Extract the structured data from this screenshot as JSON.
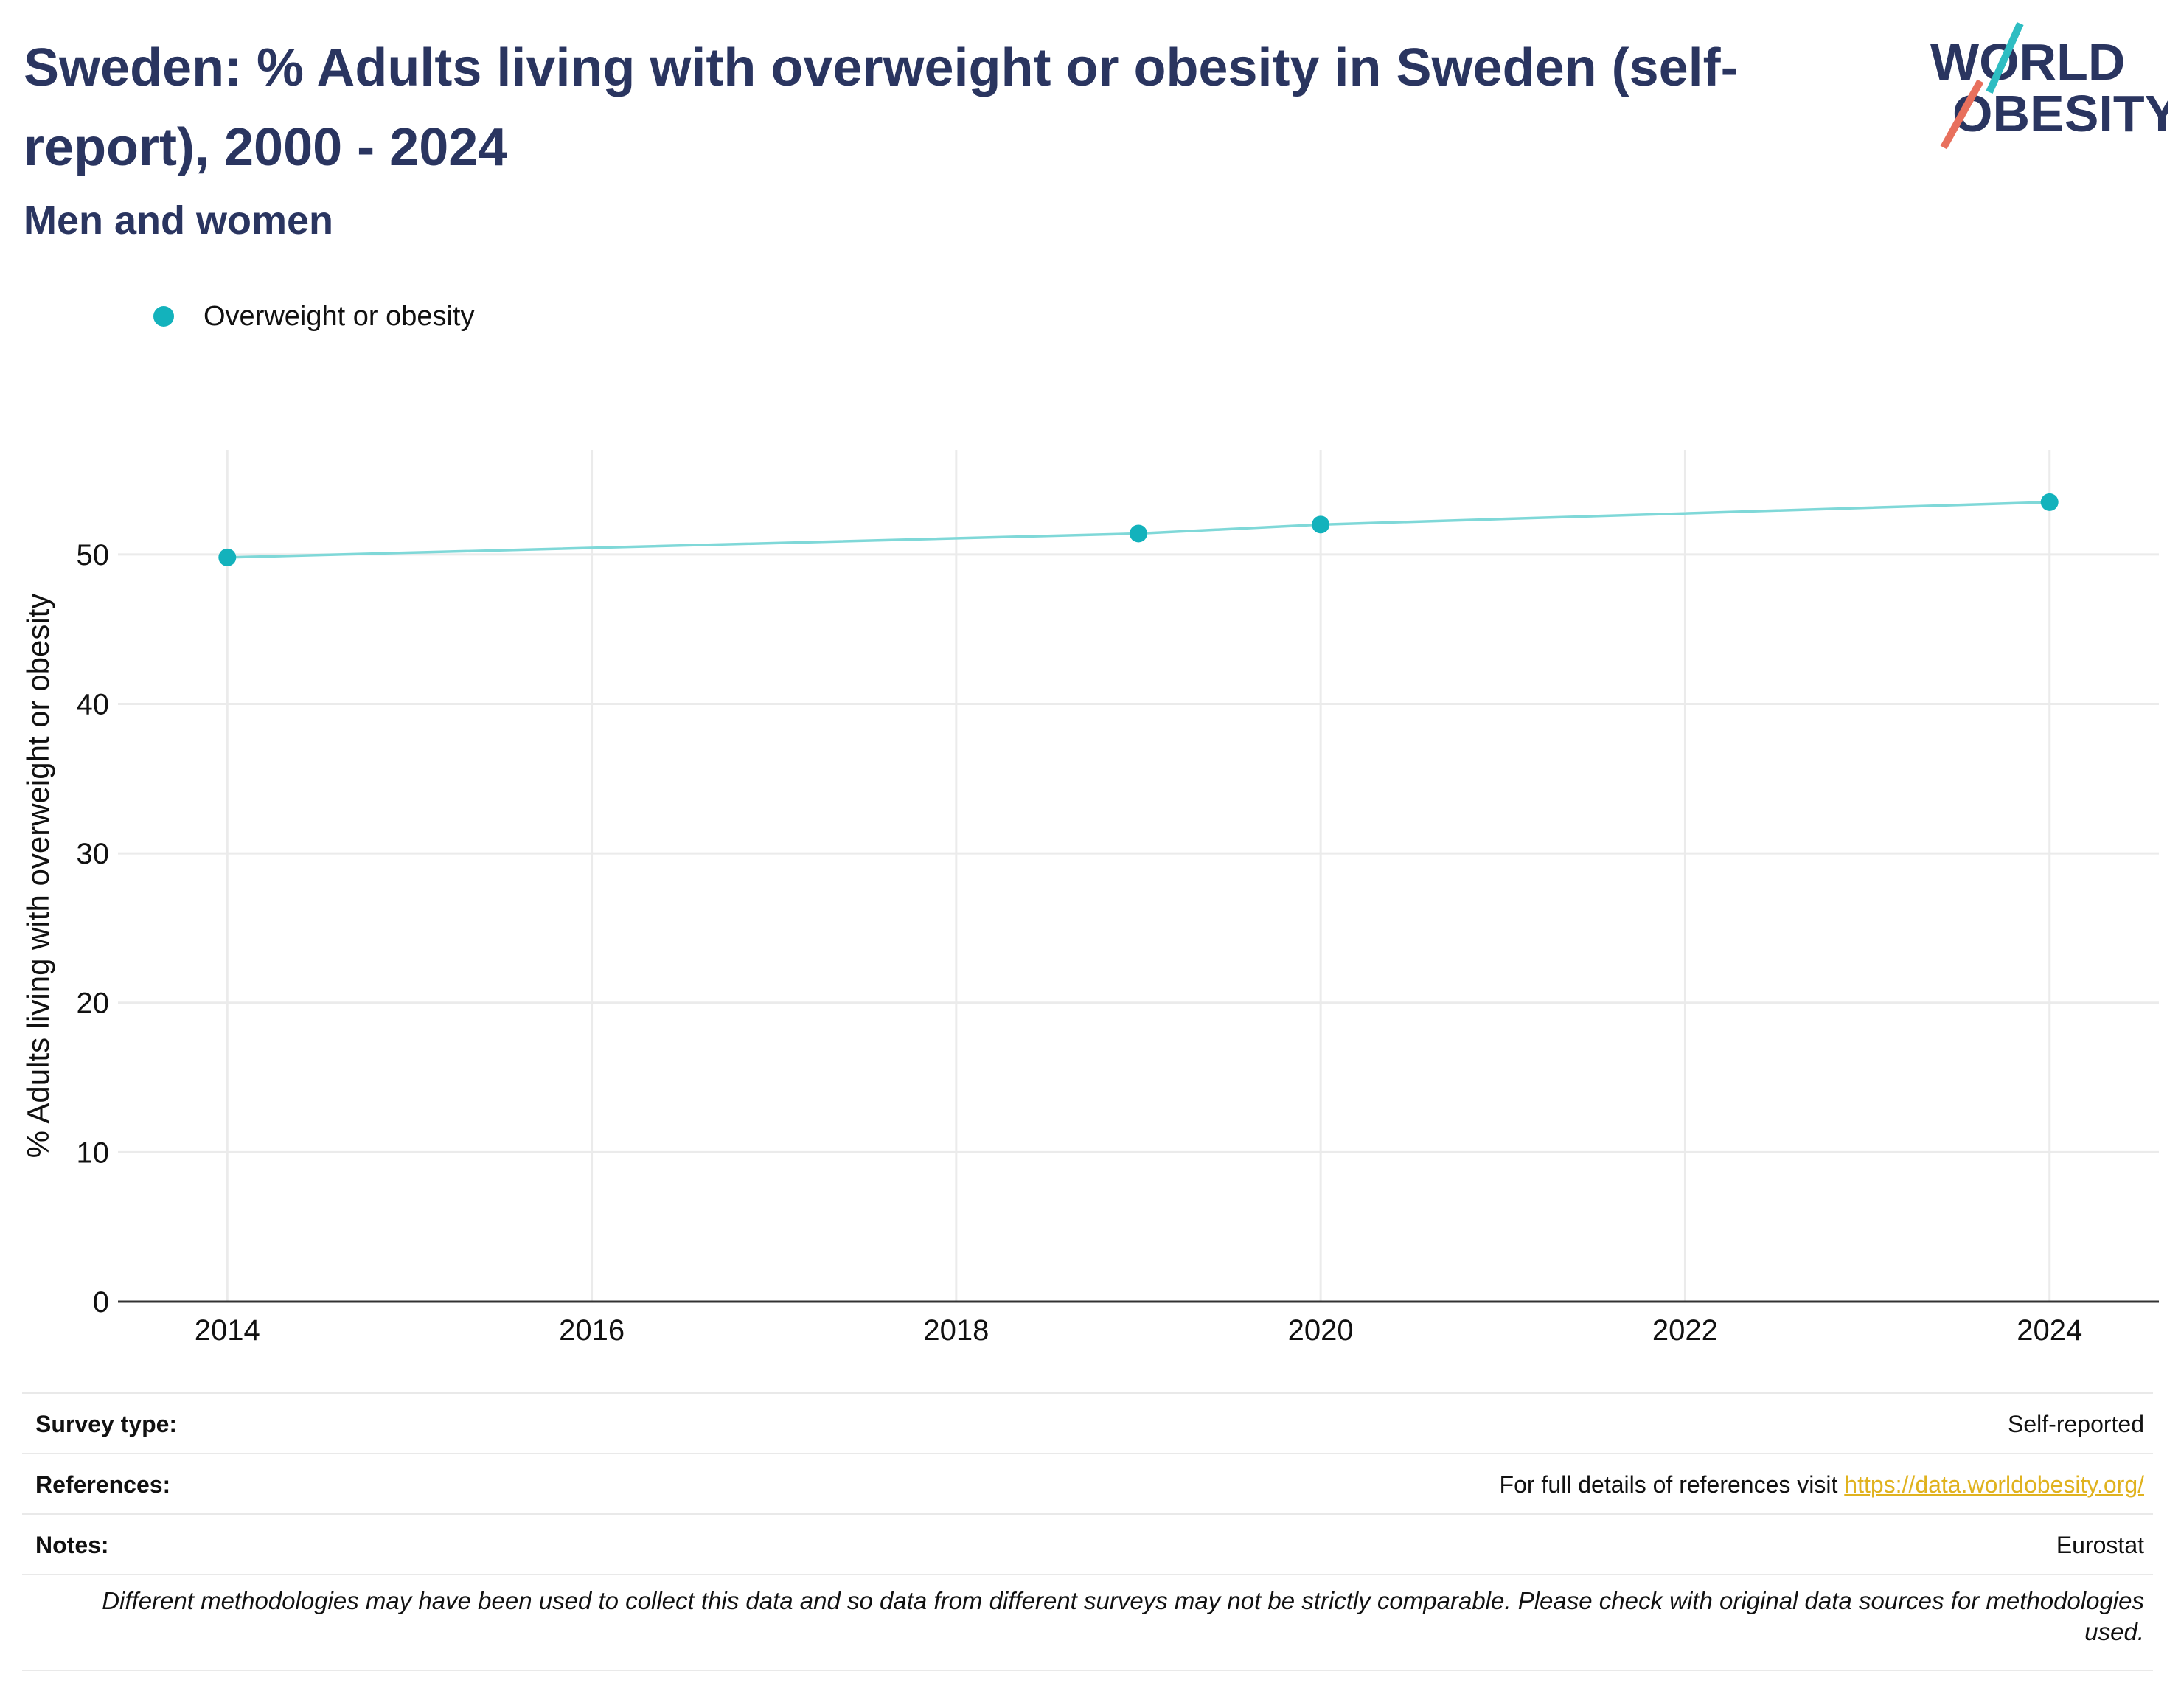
{
  "header": {
    "title": "Sweden: % Adults living with overweight or obesity in Sweden (self-report), 2000 - 2024",
    "subtitle": "Men and women"
  },
  "logo": {
    "line1": "WORLD",
    "line2": "OBESITY",
    "accent_teal": "#2ebdc2",
    "accent_coral": "#e8705d",
    "text_color": "#2a3560"
  },
  "legend": {
    "label": "Overweight or obesity",
    "color": "#13b2bc"
  },
  "chart_data": {
    "type": "line",
    "ylabel": "% Adults living with overweight or obesity",
    "xlabel": "",
    "xlim": [
      2013.4,
      2024.6
    ],
    "ylim": [
      0,
      57
    ],
    "xticks": [
      2014,
      2016,
      2018,
      2020,
      2022,
      2024
    ],
    "yticks": [
      0,
      10,
      20,
      30,
      40,
      50
    ],
    "grid": true,
    "legend_position": "top-left",
    "series": [
      {
        "name": "Overweight or obesity",
        "color": "#13b2bc",
        "line_color": "#7fd8d8",
        "x": [
          2014,
          2019,
          2020,
          2024
        ],
        "y": [
          49.8,
          51.4,
          52.0,
          53.5
        ]
      }
    ]
  },
  "meta": {
    "survey_type_label": "Survey type:",
    "survey_type_value": "Self-reported",
    "references_label": "References:",
    "references_text": "For full details of references visit ",
    "references_link": "https://data.worldobesity.org/",
    "notes_label": "Notes:",
    "notes_value": "Eurostat",
    "disclaimer": "Different methodologies may have been used to collect this data and so data from different surveys may not be strictly comparable. Please check with original data sources for methodologies used."
  }
}
